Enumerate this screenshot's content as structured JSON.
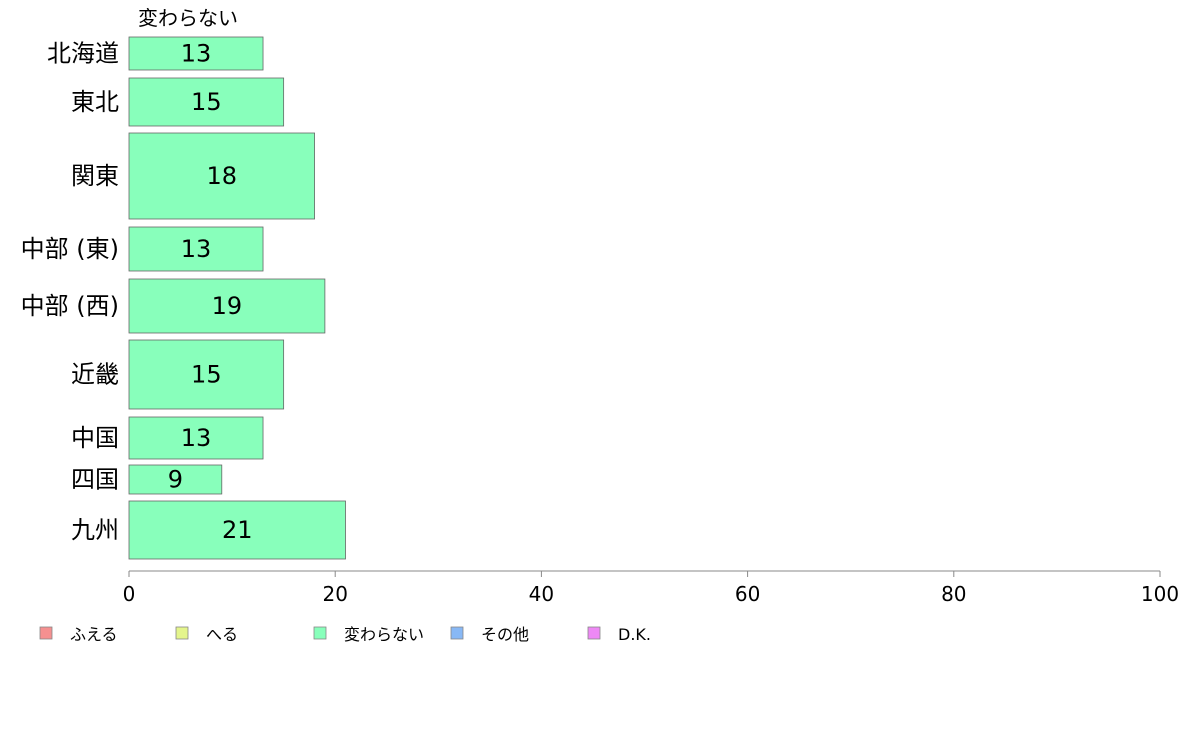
{
  "chart_data": {
    "type": "bar",
    "orientation": "horizontal",
    "series_title": "変わらない",
    "categories": [
      "北海道",
      "東北",
      "関東",
      "中部 (東)",
      "中部 (西)",
      "近畿",
      "中国",
      "四国",
      "九州"
    ],
    "series": [
      {
        "name": "変わらない",
        "values": [
          13,
          15,
          18,
          13,
          19,
          15,
          13,
          9,
          21
        ],
        "color": "#88ffbb"
      }
    ],
    "xlim": [
      0,
      100
    ],
    "xticks": [
      0,
      20,
      40,
      60,
      80,
      100
    ],
    "grid": false,
    "legend": {
      "placement": "bottom-left",
      "entries": [
        {
          "label": "ふえる",
          "color": "#f59090"
        },
        {
          "label": "へる",
          "color": "#e4f58c"
        },
        {
          "label": "変わらない",
          "color": "#88ffbb"
        },
        {
          "label": "その他",
          "color": "#88b8f5"
        },
        {
          "label": "D.K.",
          "color": "#ee88f5"
        }
      ]
    }
  }
}
